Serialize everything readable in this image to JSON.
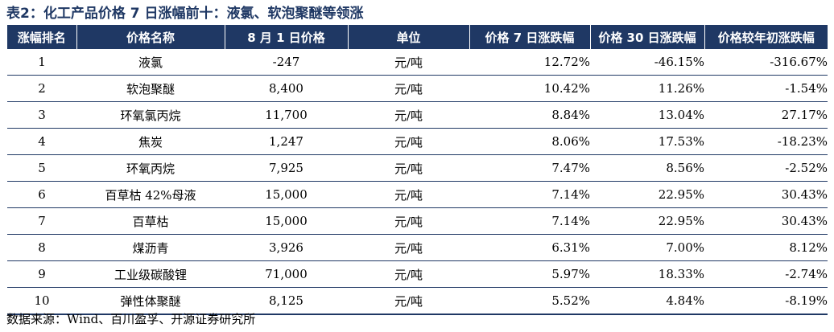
{
  "title": "表2：化工产品价格 7 日涨幅前十：液氯、软泡聚醚等领涨",
  "columns": [
    "涨幅排名",
    "价格名称",
    "8 月 1 日价格",
    "单位",
    "价格 7 日涨跌幅",
    "价格 30 日涨跌幅",
    "价格较年初涨跌幅"
  ],
  "rows": [
    {
      "rank": "1",
      "name": "液氯",
      "price": "-247",
      "unit": "元/吨",
      "change_7d": "12.72%",
      "change_30d": "-46.15%",
      "change_ytd": "-316.67%"
    },
    {
      "rank": "2",
      "name": "软泡聚醚",
      "price": "8,400",
      "unit": "元/吨",
      "change_7d": "10.42%",
      "change_30d": "11.26%",
      "change_ytd": "-1.54%"
    },
    {
      "rank": "3",
      "name": "环氧氯丙烷",
      "price": "11,700",
      "unit": "元/吨",
      "change_7d": "8.84%",
      "change_30d": "13.04%",
      "change_ytd": "27.17%"
    },
    {
      "rank": "4",
      "name": "焦炭",
      "price": "1,247",
      "unit": "元/吨",
      "change_7d": "8.06%",
      "change_30d": "17.53%",
      "change_ytd": "-18.23%"
    },
    {
      "rank": "5",
      "name": "环氧丙烷",
      "price": "7,925",
      "unit": "元/吨",
      "change_7d": "7.47%",
      "change_30d": "8.56%",
      "change_ytd": "-2.52%"
    },
    {
      "rank": "6",
      "name": "百草枯 42%母液",
      "price": "15,000",
      "unit": "元/吨",
      "change_7d": "7.14%",
      "change_30d": "22.95%",
      "change_ytd": "30.43%"
    },
    {
      "rank": "7",
      "name": "百草枯",
      "price": "15,000",
      "unit": "元/吨",
      "change_7d": "7.14%",
      "change_30d": "22.95%",
      "change_ytd": "30.43%"
    },
    {
      "rank": "8",
      "name": "煤沥青",
      "price": "3,926",
      "unit": "元/吨",
      "change_7d": "6.31%",
      "change_30d": "7.00%",
      "change_ytd": "8.12%"
    },
    {
      "rank": "9",
      "name": "工业级碳酸锂",
      "price": "71,000",
      "unit": "元/吨",
      "change_7d": "5.97%",
      "change_30d": "18.33%",
      "change_ytd": "-2.74%"
    },
    {
      "rank": "10",
      "name": "弹性体聚醚",
      "price": "8,125",
      "unit": "元/吨",
      "change_7d": "5.52%",
      "change_30d": "4.84%",
      "change_ytd": "-8.19%"
    }
  ],
  "source": "数据来源：Wind、百川盈孚、开源证券研究所"
}
